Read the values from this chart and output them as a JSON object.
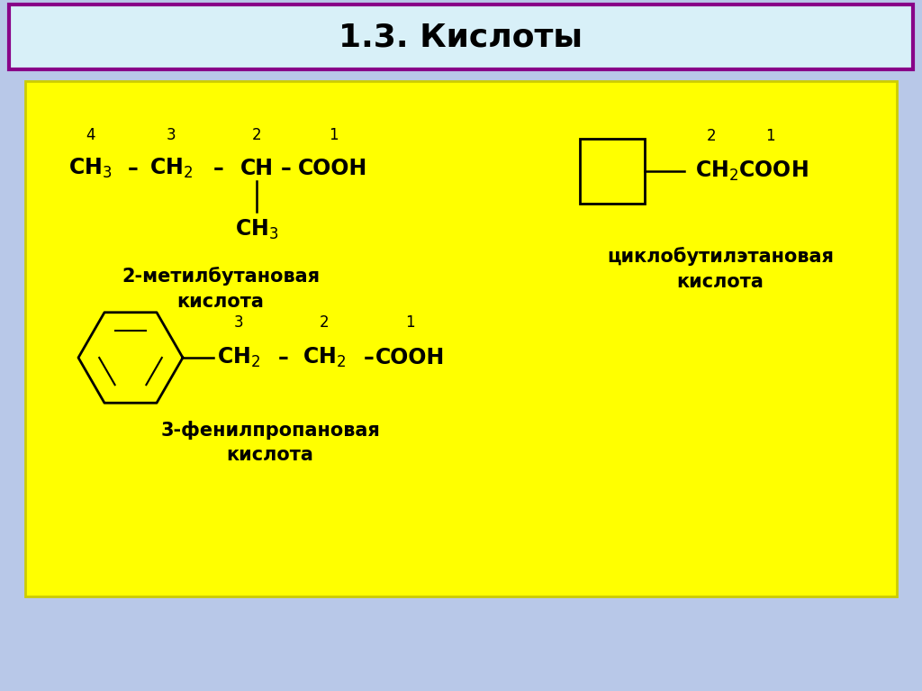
{
  "title": "1.3. Кислоты",
  "title_fontsize": 26,
  "title_fontweight": "bold",
  "bg_color": "#b8c8e8",
  "title_box_color": "#d8f0f8",
  "title_box_border": "#880088",
  "yellow_box_color": "#ffff00",
  "text_color": "#000000",
  "formula_fontsize": 17,
  "label_fontsize": 15,
  "number_fontsize": 12,
  "name1_line1": "2-метилбутановая",
  "name1_line2": "кислота",
  "name2_line1": "циклобутилэтановая",
  "name2_line2": "кислота",
  "name3_line1": "3-фенилпропановая",
  "name3_line2": "кислота"
}
